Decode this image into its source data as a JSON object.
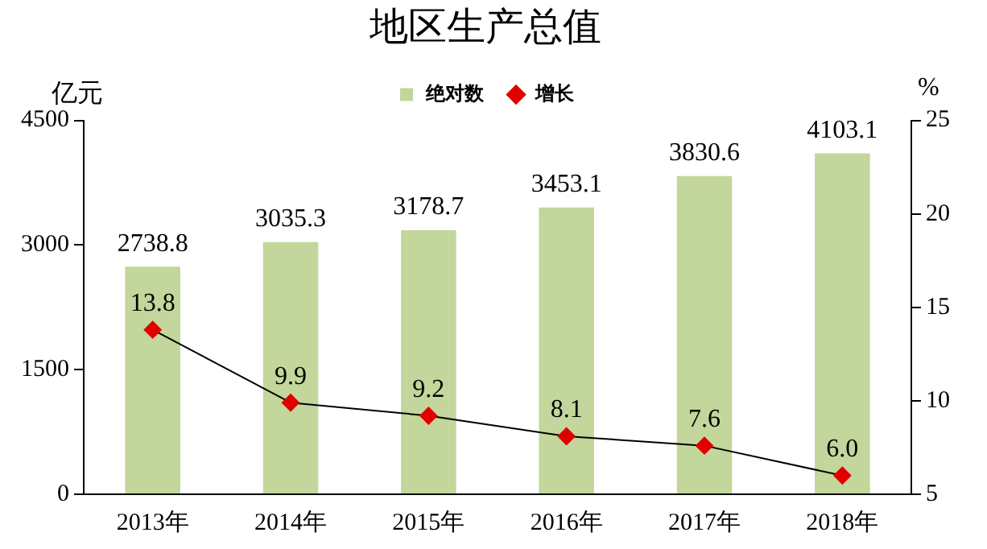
{
  "chart_data": {
    "type": "bar",
    "title": "地区生产总值",
    "ylabel": "亿元",
    "y2label": "%",
    "categories": [
      "2013年",
      "2014年",
      "2015年",
      "2016年",
      "2017年",
      "2018年"
    ],
    "series": [
      {
        "name": "绝对数",
        "color": "#c3d69b",
        "values": [
          2738.8,
          3035.3,
          3178.7,
          3453.1,
          3830.6,
          4103.1
        ],
        "value_labels": [
          "2738.8",
          "3035.3",
          "3178.7",
          "3453.1",
          "3830.6",
          "4103.1"
        ]
      },
      {
        "name": "增长",
        "type": "line",
        "axis": "y2",
        "color": "#e00000",
        "marker": "diamond",
        "values": [
          13.8,
          9.9,
          9.2,
          8.1,
          7.6,
          6.0
        ],
        "value_labels": [
          "13.8",
          "9.9",
          "9.2",
          "8.1",
          "7.6",
          "6.0"
        ]
      }
    ],
    "ylim": [
      0,
      4500
    ],
    "yticks": [
      0,
      1500,
      3000,
      4500
    ],
    "y2lim": [
      5,
      25
    ],
    "y2ticks": [
      5,
      10,
      15,
      20,
      25
    ],
    "grid": false,
    "legend": "top"
  }
}
